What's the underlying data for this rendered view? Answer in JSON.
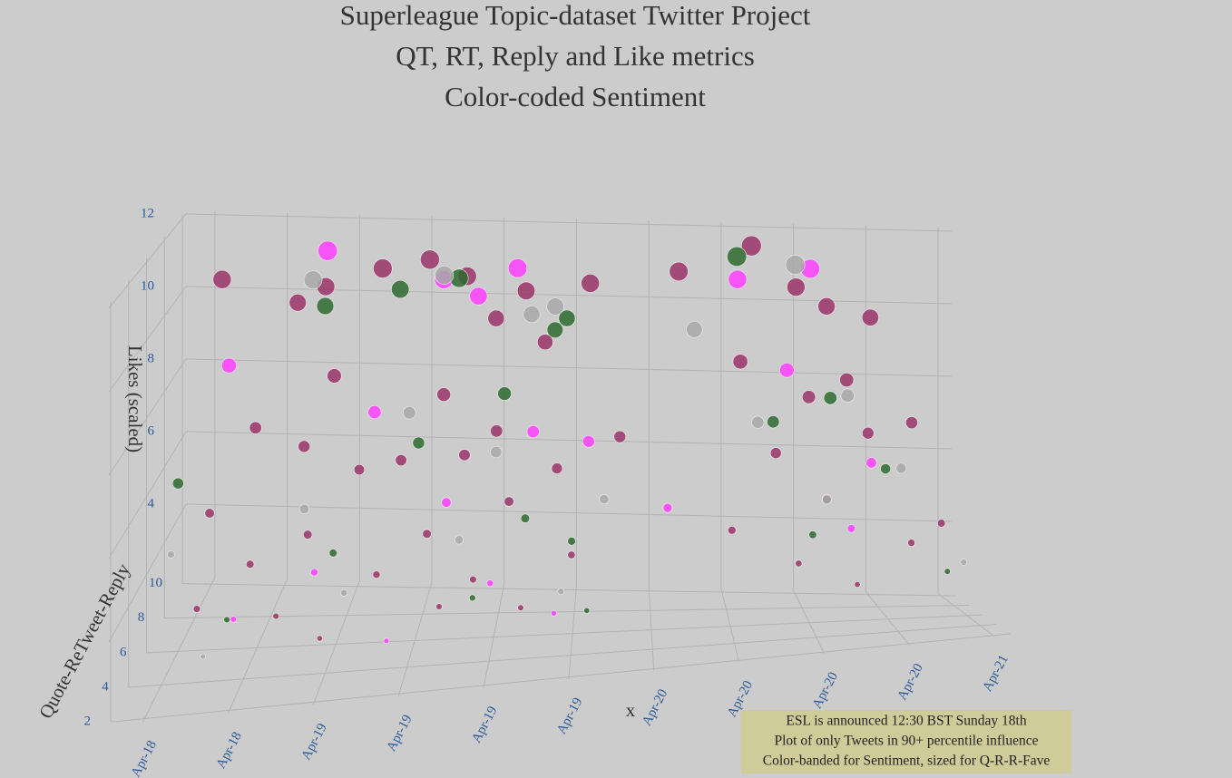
{
  "chart_data": {
    "type": "scatter3d",
    "title": [
      "Superleague Topic-dataset Twitter Project",
      "QT, RT, Reply and Like metrics",
      "Color-coded Sentiment"
    ],
    "x_label": "x",
    "y_label": "Quote-ReTweet-Reply",
    "z_label": "Likes (scaled)",
    "annotation": [
      "ESL is announced 12:30 BST Sunday 18th",
      "Plot of only Tweets in 90+ percentile influence",
      "Color-banded for Sentiment, sized for Q-R-R-Fave"
    ],
    "xlim": [
      18.4,
      21.05
    ],
    "xticks": [
      {
        "value": 18.5,
        "label": "Apr-18"
      },
      {
        "value": 18.75,
        "label": "Apr-18"
      },
      {
        "value": 19.0,
        "label": "Apr-19"
      },
      {
        "value": 19.25,
        "label": "Apr-19"
      },
      {
        "value": 19.5,
        "label": "Apr-19"
      },
      {
        "value": 19.75,
        "label": "Apr-19"
      },
      {
        "value": 20.0,
        "label": "Apr-20"
      },
      {
        "value": 20.25,
        "label": "Apr-20"
      },
      {
        "value": 20.5,
        "label": "Apr-20"
      },
      {
        "value": 20.75,
        "label": "Apr-20"
      },
      {
        "value": 21.0,
        "label": "Apr-21"
      }
    ],
    "ylim": [
      1.8,
      10.4
    ],
    "yticks": [
      2,
      4,
      6,
      8,
      10
    ],
    "zlim": [
      2,
      12.1
    ],
    "zticks": [
      4,
      6,
      8,
      10,
      12
    ],
    "grid": true,
    "series": [
      {
        "color": "#9a3468",
        "x": [
          18.55,
          18.6,
          18.62,
          18.7,
          18.75,
          18.8,
          18.85,
          18.88,
          18.9,
          18.92,
          18.95,
          19.0,
          19.05,
          19.1,
          19.15,
          19.2,
          19.25,
          19.3,
          19.32,
          19.35,
          19.38,
          19.4,
          19.45,
          19.48,
          19.5,
          19.55,
          19.58,
          19.6,
          19.65,
          19.7,
          19.75,
          19.8,
          19.9,
          20.1,
          20.25,
          20.3,
          20.35,
          20.4,
          20.45,
          20.5,
          20.52,
          20.55,
          20.6,
          20.62,
          20.65,
          20.7,
          20.75,
          20.8,
          20.85,
          20.9
        ],
        "y": [
          9.5,
          6,
          3.5,
          8,
          5,
          9.8,
          4,
          7,
          9.6,
          5.5,
          8.5,
          3,
          7.5,
          9.2,
          4.5,
          6.5,
          9.9,
          5,
          8,
          3.8,
          9.7,
          6.8,
          4.2,
          9.5,
          7.2,
          5.8,
          9.8,
          3.5,
          8.8,
          6.2,
          4.8,
          9.3,
          7,
          9.6,
          5.2,
          8.4,
          9.9,
          6.6,
          4.4,
          9.7,
          7.8,
          5.6,
          9.4,
          3.6,
          8.2,
          6.9,
          9.5,
          4.6,
          7.4,
          5
        ],
        "z": [
          10.5,
          5.5,
          4,
          7,
          4.5,
          9.8,
          3.5,
          6.8,
          10.3,
          5,
          8.2,
          3.2,
          6,
          10.9,
          4.2,
          6.5,
          11,
          5,
          7.8,
          3.5,
          10.6,
          6.5,
          4,
          9.5,
          7,
          5.5,
          10.2,
          3.4,
          9,
          6.2,
          4.3,
          10.5,
          6.8,
          10.8,
          4.6,
          8.5,
          11.5,
          6.3,
          3.8,
          10.4,
          7.6,
          5.2,
          9.9,
          3.3,
          8,
          6.7,
          9.6,
          4.1,
          6.9,
          4.5
        ]
      },
      {
        "color": "#ff40ff",
        "x": [
          18.6,
          18.72,
          18.9,
          18.95,
          19.1,
          19.2,
          19.3,
          19.35,
          19.42,
          19.5,
          19.55,
          19.62,
          19.7,
          19.8,
          20.05,
          20.3,
          20.45,
          20.55,
          20.62,
          20.7
        ],
        "y": [
          8.5,
          4,
          9.9,
          5,
          7.5,
          3,
          9.7,
          6,
          9.5,
          4.5,
          9.9,
          7,
          3.5,
          6.5,
          5.5,
          9.6,
          8,
          9.8,
          5,
          6.2
        ],
        "z": [
          8.5,
          3.5,
          11.2,
          4.2,
          7.5,
          3,
          10.5,
          5.5,
          10.1,
          3.8,
          10.8,
          7,
          3.2,
          6.8,
          5.2,
          10.6,
          8.3,
          10.9,
          4.5,
          6
        ]
      },
      {
        "color": "#2d6a2d",
        "x": [
          18.5,
          18.7,
          18.9,
          19.0,
          19.15,
          19.25,
          19.35,
          19.45,
          19.52,
          19.6,
          19.68,
          19.72,
          19.75,
          19.8,
          20.3,
          20.4,
          20.5,
          20.6,
          20.75,
          20.9
        ],
        "y": [
          6,
          4,
          9.5,
          5.5,
          9.8,
          7,
          9.9,
          4,
          8,
          6,
          9.5,
          9.6,
          5,
          3.5,
          9.9,
          7.5,
          5,
          8.5,
          6.5,
          4
        ],
        "z": [
          6.3,
          3.5,
          9.8,
          4.5,
          10.2,
          6.8,
          10.5,
          3.6,
          7.8,
          5,
          9.2,
          9.5,
          4.6,
          3.2,
          11.2,
          7,
          4.4,
          7.5,
          5.8,
          3.4
        ]
      },
      {
        "color": "#a8a8a8",
        "x": [
          18.45,
          18.65,
          18.85,
          18.9,
          19.05,
          19.2,
          19.3,
          19.4,
          19.5,
          19.6,
          19.68,
          19.72,
          19.85,
          20.15,
          20.35,
          20.5,
          20.55,
          20.65,
          20.8,
          20.95
        ],
        "y": [
          7,
          3,
          9.9,
          6,
          4.5,
          8.5,
          9.8,
          5,
          7,
          9.6,
          9.7,
          4,
          6,
          9,
          7.5,
          9.9,
          5.5,
          8,
          6.5,
          4
        ],
        "z": [
          4.1,
          3,
          10.4,
          5.5,
          3.8,
          7.2,
          10.6,
          4.8,
          6.5,
          9.6,
          9.8,
          3.6,
          5.4,
          9.3,
          7,
          11,
          5.2,
          7.6,
          5.8,
          3.6
        ]
      }
    ]
  }
}
